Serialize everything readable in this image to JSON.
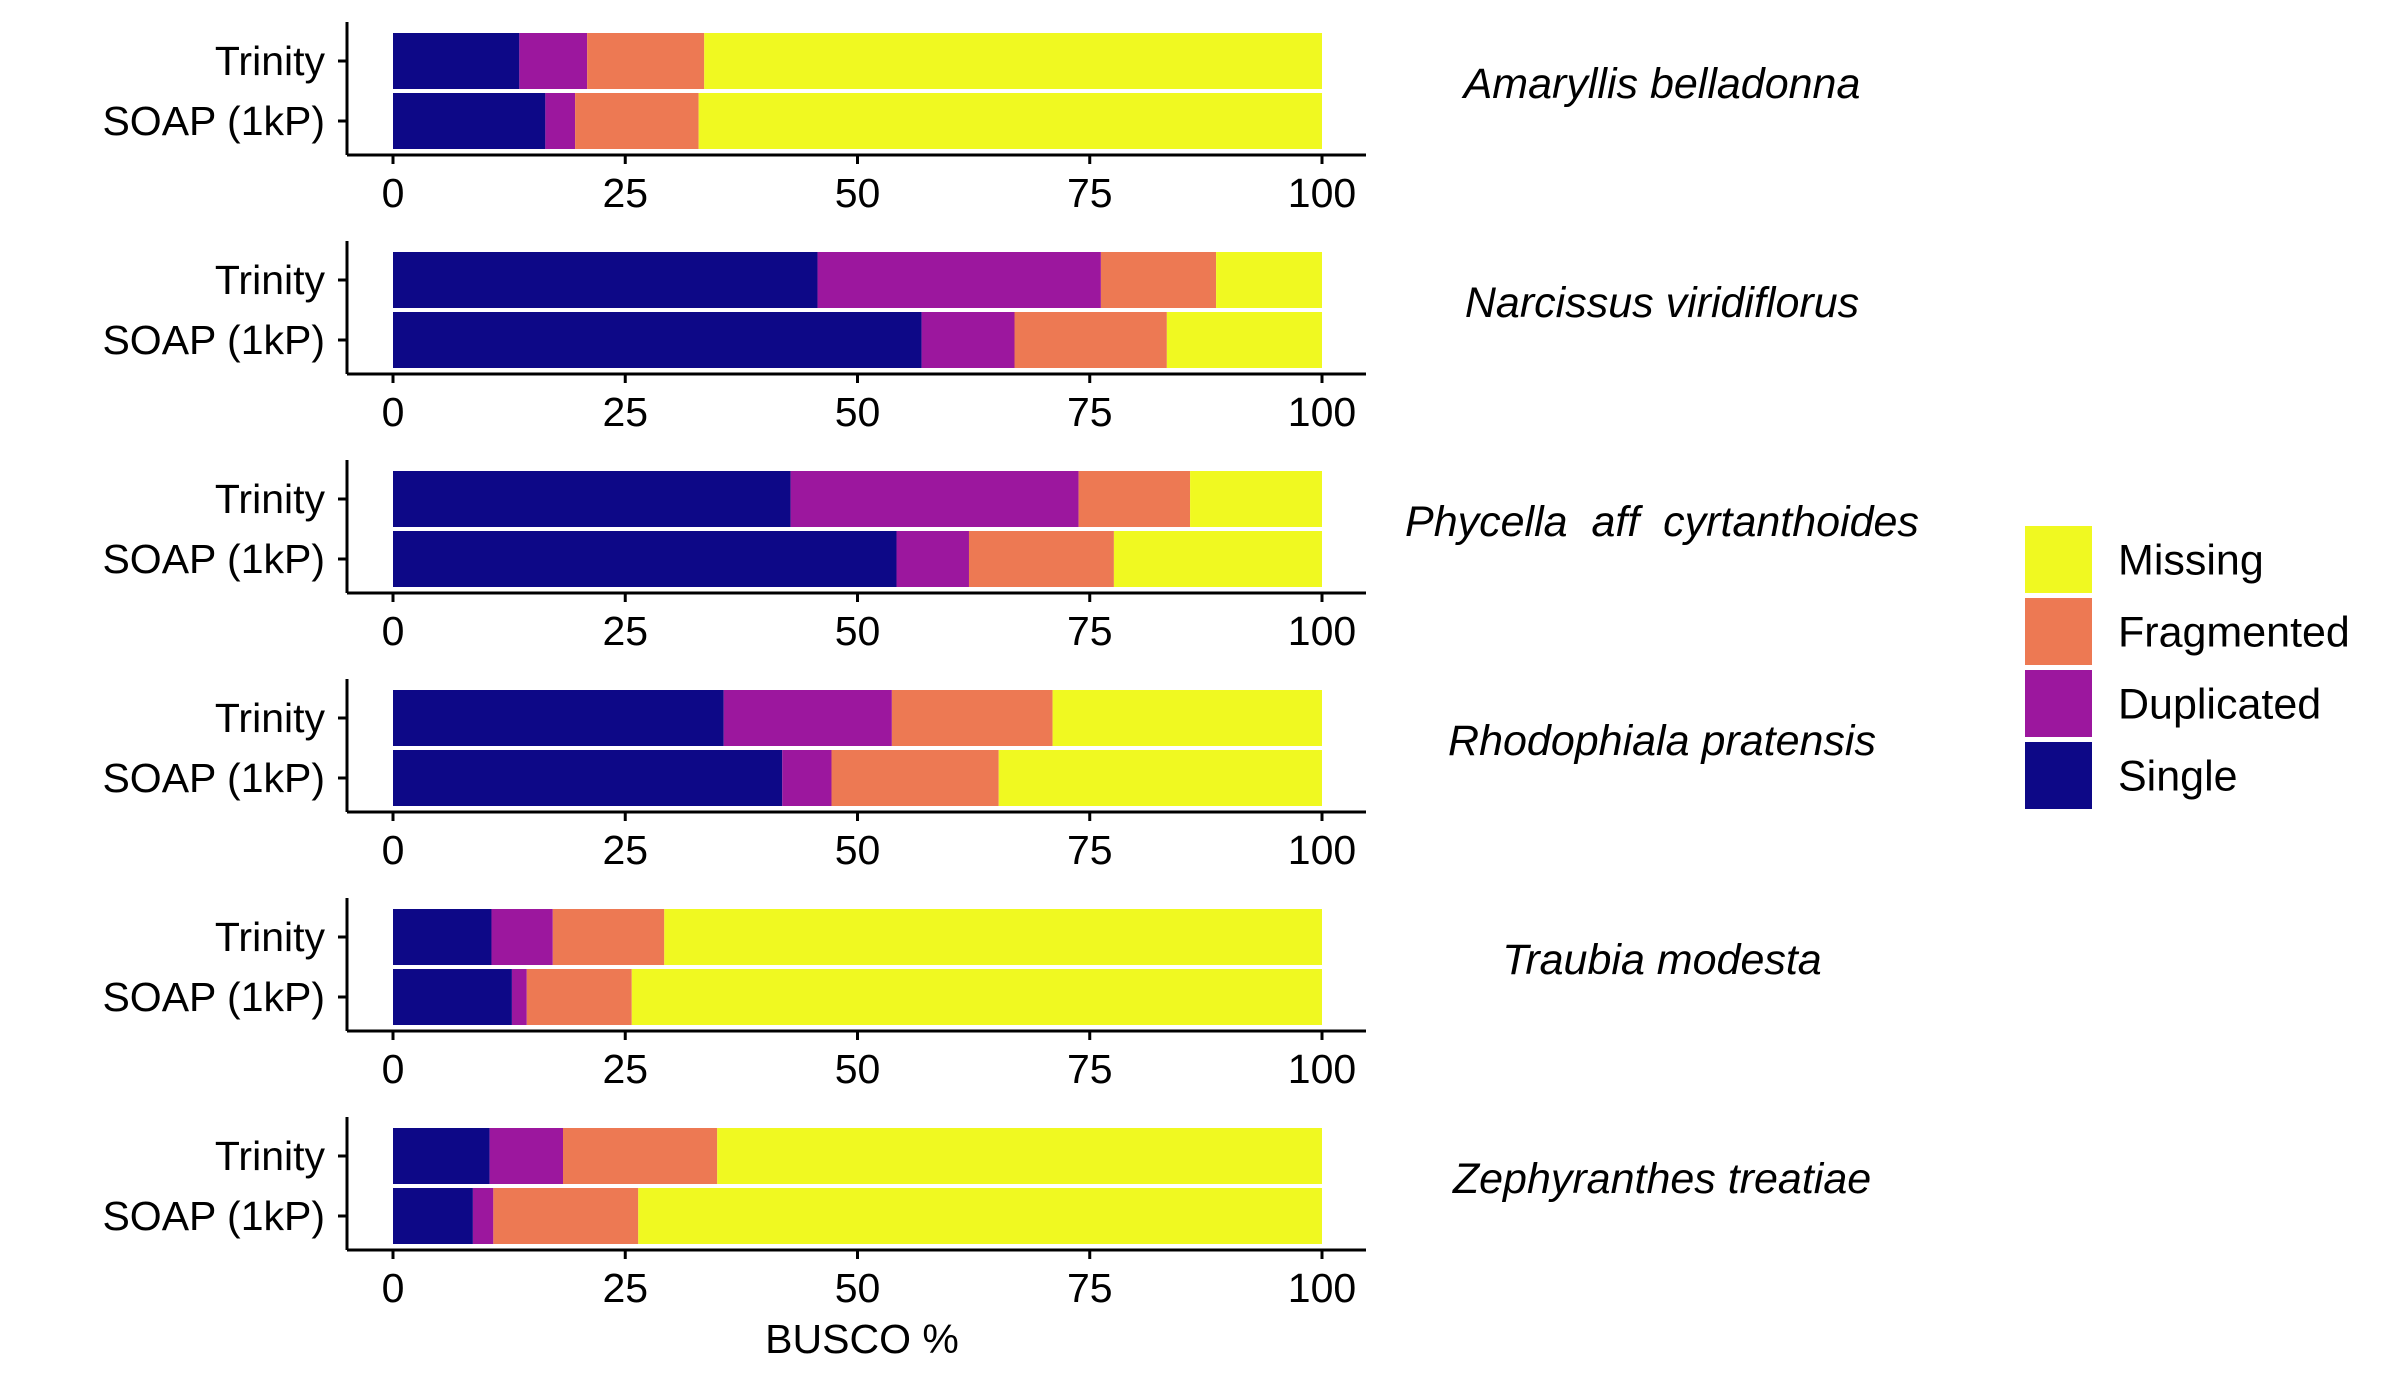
{
  "chart_data": {
    "type": "bar",
    "orientation": "horizontal",
    "stacked": true,
    "xlabel": "BUSCO %",
    "xlim": [
      0,
      100
    ],
    "xticks": [
      "0",
      "25",
      "50",
      "75",
      "100"
    ],
    "categories": [
      "Trinity",
      "SOAP (1kP)"
    ],
    "stack_order": [
      "Single",
      "Duplicated",
      "Fragmented",
      "Missing"
    ],
    "colors": {
      "Single": "#0d0887",
      "Duplicated": "#9c179e",
      "Fragmented": "#ed7953",
      "Missing": "#f0f921"
    },
    "legend": {
      "position": "right",
      "entries": [
        "Missing",
        "Fragmented",
        "Duplicated",
        "Single"
      ]
    },
    "panels": [
      {
        "species": "Amaryllis belladonna",
        "rows": [
          {
            "label": "Trinity",
            "Single": 13.6,
            "Duplicated": 7.3,
            "Fragmented": 12.6,
            "Missing": 66.5
          },
          {
            "label": "SOAP (1kP)",
            "Single": 16.4,
            "Duplicated": 3.2,
            "Fragmented": 13.3,
            "Missing": 67.1
          }
        ]
      },
      {
        "species": "Narcissus viridiflorus",
        "rows": [
          {
            "label": "Trinity",
            "Single": 45.7,
            "Duplicated": 30.5,
            "Fragmented": 12.4,
            "Missing": 11.4
          },
          {
            "label": "SOAP (1kP)",
            "Single": 56.9,
            "Duplicated": 10.0,
            "Fragmented": 16.4,
            "Missing": 16.7
          }
        ]
      },
      {
        "species": "Phycella  aff  cyrtanthoides",
        "rows": [
          {
            "label": "Trinity",
            "Single": 42.8,
            "Duplicated": 31.0,
            "Fragmented": 12.0,
            "Missing": 14.2
          },
          {
            "label": "SOAP (1kP)",
            "Single": 54.2,
            "Duplicated": 7.8,
            "Fragmented": 15.6,
            "Missing": 22.4
          }
        ]
      },
      {
        "species": "Rhodophiala pratensis",
        "rows": [
          {
            "label": "Trinity",
            "Single": 35.6,
            "Duplicated": 18.1,
            "Fragmented": 17.3,
            "Missing": 29.0
          },
          {
            "label": "SOAP (1kP)",
            "Single": 41.9,
            "Duplicated": 5.3,
            "Fragmented": 18.0,
            "Missing": 34.8
          }
        ]
      },
      {
        "species": "Traubia modesta",
        "rows": [
          {
            "label": "Trinity",
            "Single": 10.6,
            "Duplicated": 6.6,
            "Fragmented": 12.0,
            "Missing": 70.8
          },
          {
            "label": "SOAP (1kP)",
            "Single": 12.8,
            "Duplicated": 1.6,
            "Fragmented": 11.3,
            "Missing": 74.3
          }
        ]
      },
      {
        "species": "Zephyranthes treatiae",
        "rows": [
          {
            "label": "Trinity",
            "Single": 10.4,
            "Duplicated": 7.9,
            "Fragmented": 16.6,
            "Missing": 65.1
          },
          {
            "label": "SOAP (1kP)",
            "Single": 8.6,
            "Duplicated": 2.2,
            "Fragmented": 15.6,
            "Missing": 73.6
          }
        ]
      }
    ]
  }
}
